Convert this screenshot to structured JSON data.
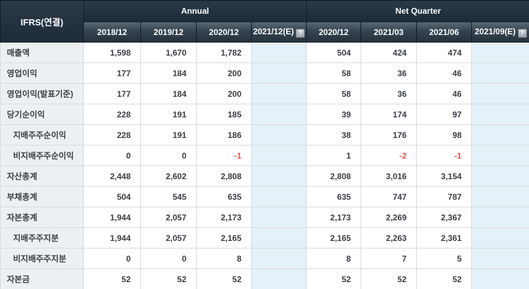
{
  "table": {
    "corner_label": "IFRS(연결)",
    "help_icon_glyph": "?",
    "groups": [
      {
        "label": "Annual",
        "cols": 4
      },
      {
        "label": "Net Quarter",
        "cols": 4
      }
    ],
    "columns": [
      {
        "label": "2018/12",
        "estimate": false
      },
      {
        "label": "2019/12",
        "estimate": false
      },
      {
        "label": "2020/12",
        "estimate": false
      },
      {
        "label": "2021/12(E)",
        "estimate": true
      },
      {
        "label": "2020/12",
        "estimate": false
      },
      {
        "label": "2021/03",
        "estimate": false
      },
      {
        "label": "2021/06",
        "estimate": false
      },
      {
        "label": "2021/09(E)",
        "estimate": true
      }
    ],
    "rows": [
      {
        "label": "매출액",
        "indent": false,
        "values": [
          "1,598",
          "1,670",
          "1,782",
          "",
          "504",
          "424",
          "474",
          ""
        ]
      },
      {
        "label": "영업이익",
        "indent": false,
        "values": [
          "177",
          "184",
          "200",
          "",
          "58",
          "36",
          "46",
          ""
        ]
      },
      {
        "label": "영업이익(발표기준)",
        "indent": false,
        "values": [
          "177",
          "184",
          "200",
          "",
          "58",
          "36",
          "46",
          ""
        ]
      },
      {
        "label": "당기순이익",
        "indent": false,
        "values": [
          "228",
          "191",
          "185",
          "",
          "39",
          "174",
          "97",
          ""
        ]
      },
      {
        "label": "지배주주순이익",
        "indent": true,
        "values": [
          "228",
          "191",
          "186",
          "",
          "38",
          "176",
          "98",
          ""
        ]
      },
      {
        "label": "비지배주주순이익",
        "indent": true,
        "values": [
          "0",
          "0",
          "-1",
          "",
          "1",
          "-2",
          "-1",
          ""
        ]
      },
      {
        "label": "자산총계",
        "indent": false,
        "values": [
          "2,448",
          "2,602",
          "2,808",
          "",
          "2,808",
          "3,016",
          "3,154",
          ""
        ]
      },
      {
        "label": "부채총계",
        "indent": false,
        "values": [
          "504",
          "545",
          "635",
          "",
          "635",
          "747",
          "787",
          ""
        ]
      },
      {
        "label": "자본총계",
        "indent": false,
        "values": [
          "1,944",
          "2,057",
          "2,173",
          "",
          "2,173",
          "2,269",
          "2,367",
          ""
        ]
      },
      {
        "label": "지배주주지분",
        "indent": true,
        "values": [
          "1,944",
          "2,057",
          "2,165",
          "",
          "2,165",
          "2,263",
          "2,361",
          ""
        ]
      },
      {
        "label": "비지배주주지분",
        "indent": true,
        "values": [
          "0",
          "0",
          "8",
          "",
          "8",
          "7",
          "5",
          ""
        ]
      },
      {
        "label": "자본금",
        "indent": false,
        "values": [
          "52",
          "52",
          "52",
          "",
          "52",
          "52",
          "52",
          ""
        ]
      }
    ],
    "colors": {
      "header_bg": "#1f2e3c",
      "subheader_bg": "#36434f",
      "label_bg": "#edf0f3",
      "estimate_bg": "#e5f1f8",
      "negative_text": "#e85555",
      "header_text": "#ffffff",
      "body_text": "#383d44",
      "border": "#d9dcde"
    }
  }
}
